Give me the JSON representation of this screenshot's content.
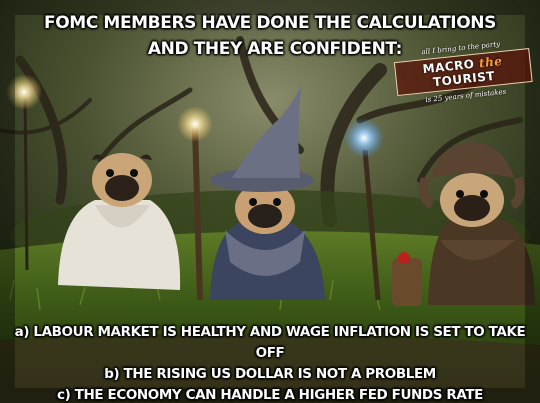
{
  "headline": {
    "line1": "FOMC MEMBERS HAVE DONE THE  CALCULATIONS",
    "line2": "AND THEY ARE CONFIDENT:"
  },
  "watermark": {
    "tagline": "all I bring to the party",
    "brand_left": "MACRO",
    "brand_mid": "the",
    "brand_right": "TOURIST",
    "subline": "is 25 years of mistakes"
  },
  "statements": [
    "a) LABOUR MARKET IS HEALTHY AND WAGE INFLATION IS SET TO TAKE OFF",
    "b) THE RISING US DOLLAR IS NOT A PROBLEM",
    "c) THE ECONOMY CAN HANDLE A HIGHER FED FUNDS RATE"
  ],
  "photo": {
    "subjects": [
      "pug-in-white-robe",
      "pug-wizard-hat",
      "pug-fur-hat"
    ]
  },
  "colors": {
    "text": "#ffffff",
    "logo_accent": "#ff9c3a"
  }
}
